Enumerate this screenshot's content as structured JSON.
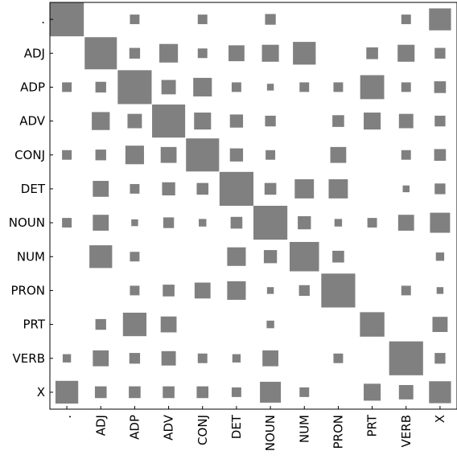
{
  "chart_data": {
    "type": "heatmap",
    "style": "hinton",
    "title": "",
    "xlabel": "",
    "ylabel": "",
    "grid": false,
    "labels": [
      ".",
      "ADJ",
      "ADP",
      "ADV",
      "CONJ",
      "DET",
      "NOUN",
      "NUM",
      "PRON",
      "PRT",
      "VERB",
      "X"
    ],
    "x_tick_labels": [
      ".",
      "ADJ",
      "ADP",
      "ADV",
      "CONJ",
      "DET",
      "NOUN",
      "NUM",
      "PRON",
      "PRT",
      "VERB",
      "X"
    ],
    "y_tick_labels": [
      ".",
      "ADJ",
      "ADP",
      "ADV",
      "CONJ",
      "DET",
      "NOUN",
      "NUM",
      "PRON",
      "PRT",
      "VERB",
      "X"
    ],
    "value_range": [
      0,
      1
    ],
    "matrix": [
      [
        1.0,
        0,
        0.08,
        0,
        0.08,
        0,
        0.1,
        0,
        0,
        0,
        0.08,
        0.42
      ],
      [
        0,
        0.9,
        0.1,
        0.3,
        0.08,
        0.22,
        0.25,
        0.45,
        0,
        0.12,
        0.25,
        0.1
      ],
      [
        0.08,
        0.1,
        1.0,
        0.18,
        0.3,
        0.08,
        0.04,
        0.08,
        0.08,
        0.5,
        0.08,
        0.12
      ],
      [
        0,
        0.28,
        0.18,
        0.95,
        0.25,
        0.15,
        0.1,
        0,
        0.12,
        0.25,
        0.18,
        0.1
      ],
      [
        0.08,
        0.1,
        0.3,
        0.22,
        0.95,
        0.15,
        0.08,
        0,
        0.22,
        0,
        0.08,
        0.12
      ],
      [
        0,
        0.22,
        0.08,
        0.15,
        0.12,
        1.0,
        0.12,
        0.32,
        0.32,
        0,
        0.04,
        0.1
      ],
      [
        0.08,
        0.22,
        0.04,
        0.1,
        0.05,
        0.12,
        1.0,
        0.15,
        0.05,
        0.08,
        0.22,
        0.35
      ],
      [
        0,
        0.45,
        0.08,
        0,
        0,
        0.3,
        0.15,
        0.75,
        0.12,
        0,
        0,
        0.06
      ],
      [
        0,
        0,
        0.08,
        0.12,
        0.22,
        0.3,
        0.04,
        0.1,
        1.0,
        0,
        0.08,
        0.04
      ],
      [
        0,
        0.1,
        0.48,
        0.22,
        0,
        0,
        0.05,
        0,
        0,
        0.52,
        0,
        0.2
      ],
      [
        0.06,
        0.22,
        0.1,
        0.18,
        0.08,
        0.06,
        0.22,
        0,
        0.08,
        0,
        1.0,
        0.1
      ],
      [
        0.45,
        0.12,
        0.12,
        0.12,
        0.12,
        0.08,
        0.38,
        0.08,
        0,
        0.25,
        0.18,
        0.42
      ]
    ],
    "colors": {
      "cell": "#808080",
      "background": "#ffffff",
      "axis": "#000000"
    }
  }
}
